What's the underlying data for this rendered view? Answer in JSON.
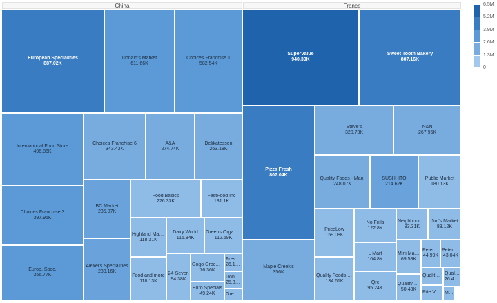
{
  "chart_data": {
    "type": "treemap",
    "groups": [
      {
        "name": "China",
        "items": [
          {
            "label": "European Specialities",
            "value": "887.02K",
            "color": "#3a7cc1"
          },
          {
            "label": "Donald's Market",
            "value": "611.66K",
            "color": "#5b9ad6"
          },
          {
            "label": "Choices Franchise 1",
            "value": "582.54K",
            "color": "#5b9ad6"
          },
          {
            "label": "International Food Store",
            "value": "496.86K",
            "color": "#5b9ad6"
          },
          {
            "label": "Choices Franchise 3",
            "value": "397.95K",
            "color": "#5b9ad6"
          },
          {
            "label": "Europ. Spec.",
            "value": "356.77K",
            "color": "#5b9ad6"
          },
          {
            "label": "Choices Franchise 6",
            "value": "343.43K",
            "color": "#78acdf"
          },
          {
            "label": "A&A",
            "value": "274.74K",
            "color": "#78acdf"
          },
          {
            "label": "Delikatessen",
            "value": "263.18K",
            "color": "#78acdf"
          },
          {
            "label": "BC Market",
            "value": "235.07K",
            "color": "#6aa3dc"
          },
          {
            "label": "Alexei's Specialities",
            "value": "233.16K",
            "color": "#6aa3dc"
          },
          {
            "label": "Food Basics",
            "value": "226.33K",
            "color": "#8fbbe7"
          },
          {
            "label": "FastFood Inc",
            "value": "131.1K",
            "color": "#8fbbe7"
          },
          {
            "label": "Highland Market",
            "value": "118.31K",
            "color": "#8fbbe7"
          },
          {
            "label": "Dairy World",
            "value": "115.84K",
            "color": "#8fbbe7"
          },
          {
            "label": "Greens Organics",
            "value": "112.69K",
            "color": "#8fbbe7"
          },
          {
            "label": "Food and more",
            "value": "118.13K",
            "color": "#8fbbe7"
          },
          {
            "label": "24-Seven",
            "value": "94.38K",
            "color": "#8fbbe7"
          },
          {
            "label": "Gogo Grocercies",
            "value": "76.36K",
            "color": "#8fbbe7"
          },
          {
            "label": "Euro Specials",
            "value": "49.24K",
            "color": "#8fbbe7"
          },
          {
            "label": "Fresh ...",
            "value": "26.14K",
            "color": "#8fbbe7"
          },
          {
            "label": "Donal...",
            "value": "25.33K",
            "color": "#8fbbe7"
          },
          {
            "label": "Greens",
            "value": "",
            "color": "#8fbbe7"
          }
        ]
      },
      {
        "name": "France",
        "items": [
          {
            "label": "SuperValue",
            "value": "940.39K",
            "color": "#1f63ad"
          },
          {
            "label": "Sweet Tooth Bakery",
            "value": "807.16K",
            "color": "#3a7cc1"
          },
          {
            "label": "Pizza Fresh",
            "value": "807.04K",
            "color": "#3a7cc1"
          },
          {
            "label": "Maple Creek's",
            "value": "356K",
            "color": "#78acdf"
          },
          {
            "label": "Steve's",
            "value": "320.73K",
            "color": "#78acdf"
          },
          {
            "label": "N&N",
            "value": "267.96K",
            "color": "#78acdf"
          },
          {
            "label": "Quality Foods - Man.",
            "value": "248.07K",
            "color": "#78acdf"
          },
          {
            "label": "SUSHI-ITO",
            "value": "214.62K",
            "color": "#6aa3dc"
          },
          {
            "label": "Public Market",
            "value": "180.13K",
            "color": "#8fbbe7"
          },
          {
            "label": "PriceLow",
            "value": "159.08K",
            "color": "#8fbbe7"
          },
          {
            "label": "Quality Foods - S...",
            "value": "134.61K",
            "color": "#8fbbe7"
          },
          {
            "label": "No Frills",
            "value": "122.8K",
            "color": "#8fbbe7"
          },
          {
            "label": "L Mart",
            "value": "104.8K",
            "color": "#8fbbe7"
          },
          {
            "label": "Qrc",
            "value": "95.24K",
            "color": "#8fbbe7"
          },
          {
            "label": "Neighbourho...",
            "value": "83.31K",
            "color": "#8fbbe7"
          },
          {
            "label": "Jim's Market",
            "value": "83.12K",
            "color": "#8fbbe7"
          },
          {
            "label": "Mini Market",
            "value": "69.58K",
            "color": "#8fbbe7"
          },
          {
            "label": "Quality Fo...",
            "value": "50.48K",
            "color": "#8fbbe7"
          },
          {
            "label": "Peter P...",
            "value": "44.99K",
            "color": "#8fbbe7"
          },
          {
            "label": "Peter's...",
            "value": "43.04K",
            "color": "#8fbbe7"
          },
          {
            "label": "Quality F...",
            "value": "",
            "color": "#8fbbe7"
          },
          {
            "label": "Qualit...",
            "value": "26.42K",
            "color": "#8fbbe7"
          },
          {
            "label": "Rite Value",
            "value": "",
            "color": "#8fbbe7"
          },
          {
            "label": "Ma...",
            "value": "",
            "color": "#8fbbe7"
          }
        ]
      }
    ],
    "legend": {
      "ticks": [
        "6.5M",
        "5.2M",
        "3.9M",
        "2.6M",
        "1.3M",
        "0"
      ],
      "colors": [
        "#1f63ad",
        "#3a7cc1",
        "#5b9ad6",
        "#78acdf",
        "#a3c8ee"
      ],
      "range": [
        0,
        6500000
      ],
      "placement": "right"
    }
  }
}
